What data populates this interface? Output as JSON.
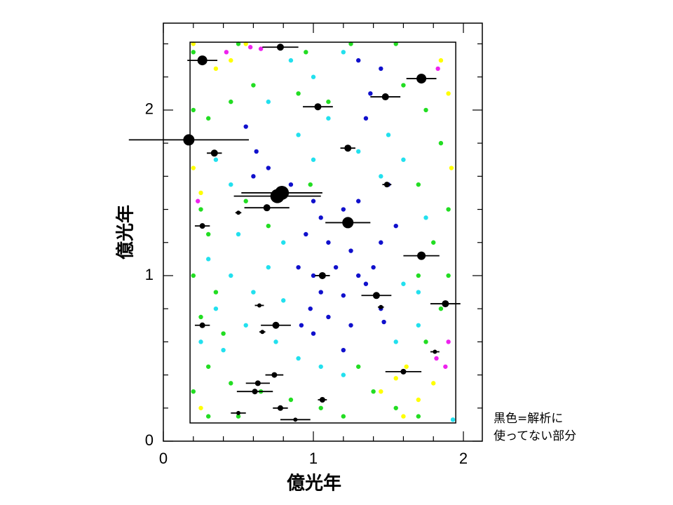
{
  "chart_data": {
    "type": "scatter",
    "x_label": "億光年",
    "y_label": "億光年",
    "annotation": [
      "黒色=解析に",
      "使ってない部分"
    ],
    "xlim": [
      0,
      2.126
    ],
    "ylim": [
      0,
      2.525
    ],
    "xticks": [
      0,
      1,
      2
    ],
    "yticks": [
      0,
      1,
      2
    ],
    "minor_xticks": [
      0.2,
      0.4,
      0.6,
      0.8,
      1.2,
      1.4,
      1.6,
      1.8
    ],
    "minor_yticks": [
      0.2,
      0.4,
      0.6,
      0.8,
      1.2,
      1.4,
      1.6,
      1.8,
      2.2,
      2.4
    ],
    "region": {
      "x": [
        0.178,
        1.949
      ],
      "y": [
        0.11,
        2.41
      ]
    },
    "series": [
      {
        "color": "#22dd22",
        "x": [
          0.2,
          0.3,
          0.45,
          0.6,
          0.9,
          1.1,
          1.6,
          1.75,
          1.85,
          1.7,
          1.9,
          1.8,
          1.9,
          1.7,
          1.85,
          1.75,
          0.25,
          0.3,
          0.2,
          0.35,
          0.25,
          0.3,
          0.45,
          0.2,
          0.65,
          0.85,
          1.05,
          1.2,
          1.4,
          1.55,
          1.7,
          0.5,
          0.3,
          0.95,
          0.5,
          0.2,
          1.25,
          1.55,
          0.7,
          0.55,
          0.4,
          1.3,
          0.98
        ],
        "y": [
          2.0,
          1.95,
          2.05,
          2.15,
          2.1,
          2.05,
          2.15,
          2.0,
          1.8,
          1.55,
          1.4,
          1.2,
          1.0,
          1.0,
          0.8,
          0.6,
          1.4,
          1.25,
          1.0,
          0.9,
          0.75,
          0.45,
          0.35,
          0.3,
          0.3,
          0.25,
          0.2,
          0.15,
          0.3,
          0.2,
          0.15,
          0.15,
          0.15,
          2.35,
          2.4,
          2.35,
          2.4,
          2.4,
          1.3,
          1.45,
          0.65,
          0.45,
          1.55
        ]
      },
      {
        "color": "#22e0ee",
        "x": [
          0.85,
          1.0,
          1.2,
          0.7,
          1.1,
          1.5,
          1.6,
          1.3,
          1.45,
          0.45,
          0.35,
          0.5,
          0.3,
          0.45,
          0.7,
          0.8,
          0.6,
          0.8,
          0.35,
          0.55,
          0.75,
          0.9,
          1.05,
          1.2,
          0.4,
          1.6,
          1.7,
          1.55,
          1.7,
          1.75,
          0.25,
          1.0,
          0.9,
          1.93
        ],
        "y": [
          2.3,
          2.2,
          2.35,
          2.05,
          1.95,
          1.85,
          1.7,
          1.75,
          1.6,
          1.55,
          1.7,
          1.25,
          1.1,
          1.0,
          1.05,
          1.2,
          0.9,
          0.85,
          0.8,
          0.7,
          0.6,
          0.5,
          0.45,
          0.4,
          0.55,
          0.95,
          0.9,
          0.6,
          0.7,
          1.35,
          0.6,
          1.7,
          1.85,
          0.13
        ]
      },
      {
        "color": "#1010cc",
        "x": [
          1.45,
          1.38,
          1.35,
          1.3,
          0.55,
          0.62,
          0.7,
          0.6,
          0.85,
          1.0,
          1.05,
          1.2,
          1.3,
          0.95,
          1.1,
          1.25,
          1.45,
          1.55,
          0.9,
          1.0,
          1.15,
          1.3,
          1.4,
          1.05,
          1.2,
          0.98,
          1.1,
          1.25,
          1.45,
          1.47,
          1.0,
          1.2,
          1.35,
          0.92,
          1.5
        ],
        "y": [
          2.25,
          2.1,
          1.95,
          2.3,
          1.9,
          1.75,
          1.65,
          1.6,
          1.55,
          1.45,
          1.35,
          1.4,
          1.45,
          1.25,
          1.2,
          1.15,
          1.2,
          1.3,
          1.05,
          1.0,
          1.05,
          1.0,
          1.05,
          0.9,
          0.88,
          0.8,
          0.75,
          0.7,
          0.8,
          0.72,
          0.65,
          0.55,
          0.95,
          0.7,
          1.55
        ]
      },
      {
        "color": "#ffff00",
        "x": [
          0.2,
          0.35,
          0.45,
          0.55,
          0.2,
          0.25,
          1.62,
          1.55,
          1.45,
          1.8,
          1.7,
          1.85,
          1.9,
          1.92,
          0.25,
          1.6
        ],
        "y": [
          2.4,
          2.25,
          2.3,
          2.4,
          1.65,
          1.5,
          0.45,
          0.38,
          0.3,
          0.35,
          0.25,
          2.3,
          2.1,
          1.65,
          0.2,
          0.15
        ]
      },
      {
        "color": "#ee22ee",
        "x": [
          0.58,
          0.65,
          0.42,
          0.23,
          1.82,
          1.88,
          1.83,
          1.9
        ],
        "y": [
          2.38,
          2.37,
          2.35,
          1.45,
          0.5,
          0.45,
          2.25,
          0.6
        ]
      }
    ],
    "excluded": {
      "color": "#000000",
      "x": [
        0.26,
        0.78,
        0.17,
        0.34,
        0.76,
        0.79,
        0.69,
        1.23,
        1.03,
        1.23,
        1.48,
        1.72,
        1.49,
        1.72,
        1.88,
        1.42,
        1.06,
        0.75,
        0.26,
        1.6,
        0.5,
        0.26,
        0.64,
        1.06,
        0.63,
        0.61,
        0.74,
        0.88,
        0.78,
        0.5,
        0.66,
        1.81,
        1.45
      ],
      "y": [
        2.3,
        2.38,
        1.82,
        1.74,
        1.48,
        1.5,
        1.41,
        1.32,
        2.02,
        1.77,
        2.08,
        2.19,
        1.55,
        1.12,
        0.83,
        0.88,
        1.0,
        0.7,
        0.7,
        0.42,
        1.38,
        1.3,
        0.82,
        0.25,
        0.35,
        0.3,
        0.4,
        0.13,
        0.2,
        0.17,
        0.66,
        0.54,
        0.81
      ],
      "xerr": [
        0.1,
        0.12,
        0.4,
        0.05,
        0.29,
        0.27,
        0.15,
        0.15,
        0.1,
        0.05,
        0.1,
        0.1,
        0.03,
        0.12,
        0.1,
        0.1,
        0.05,
        0.1,
        0.05,
        0.12,
        0.02,
        0.05,
        0.03,
        0.03,
        0.08,
        0.12,
        0.06,
        0.1,
        0.05,
        0.05,
        0.02,
        0.03,
        0.02
      ],
      "sizes": [
        7,
        5,
        8,
        5,
        10,
        10,
        5,
        8,
        5,
        5,
        5,
        7,
        4,
        6,
        5,
        5,
        5,
        5,
        4,
        4,
        3,
        4,
        3,
        4,
        4,
        4,
        4,
        3,
        4,
        3,
        3,
        3,
        3
      ]
    }
  }
}
